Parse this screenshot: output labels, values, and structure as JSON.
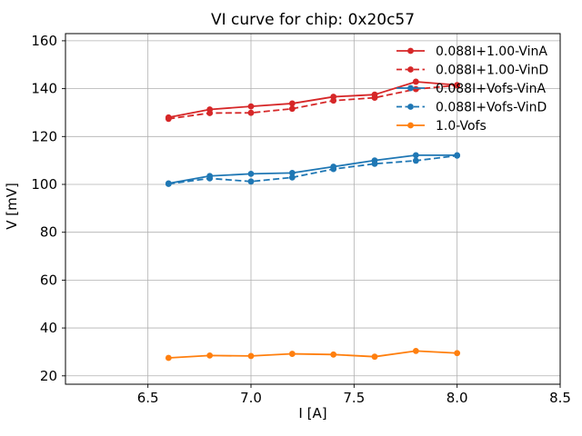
{
  "figure": {
    "background": "#ffffff"
  },
  "chart_data": {
    "type": "line",
    "title": "VI curve for chip: 0x20c57",
    "xlabel": "I [A]",
    "ylabel": "V [mV]",
    "xlim": [
      6.1,
      8.5
    ],
    "ylim": [
      16.5,
      163
    ],
    "grid": true,
    "legend_position": "upper right",
    "legend_frame": false,
    "xticks": {
      "values": [
        6.5,
        7.0,
        7.5,
        8.0,
        8.5
      ],
      "labels": [
        "6.5",
        "7.0",
        "7.5",
        "8.0",
        "8.5"
      ]
    },
    "yticks": {
      "values": [
        20,
        40,
        60,
        80,
        100,
        120,
        140,
        160
      ],
      "labels": [
        "20",
        "40",
        "60",
        "80",
        "100",
        "120",
        "140",
        "160"
      ]
    },
    "x": [
      6.6,
      6.8,
      7.0,
      7.2,
      7.4,
      7.6,
      7.8,
      8.0
    ],
    "series": [
      {
        "name": "0.088I+1.00-VinA",
        "color": "#d62728",
        "line_style": "solid",
        "marker": "circle",
        "values": [
          128.0,
          131.3,
          132.6,
          133.8,
          136.6,
          137.5,
          142.9,
          141.5
        ]
      },
      {
        "name": "0.088I+1.00-VinD",
        "color": "#d62728",
        "line_style": "dashed",
        "marker": "circle",
        "values": [
          127.4,
          129.8,
          129.9,
          131.6,
          135.0,
          136.2,
          139.8,
          141.4
        ]
      },
      {
        "name": "0.088I+Vofs-VinA",
        "color": "#1f77b4",
        "line_style": "solid",
        "marker": "circle",
        "values": [
          100.4,
          103.5,
          104.4,
          104.8,
          107.4,
          110.0,
          112.2,
          112.2
        ]
      },
      {
        "name": "0.088I+Vofs-VinD",
        "color": "#1f77b4",
        "line_style": "dashed",
        "marker": "circle",
        "values": [
          100.2,
          102.5,
          101.2,
          102.9,
          106.4,
          108.6,
          109.9,
          112.0
        ]
      },
      {
        "name": "1.0-Vofs",
        "color": "#ff7f0e",
        "line_style": "solid",
        "marker": "circle",
        "values": [
          27.5,
          28.5,
          28.3,
          29.2,
          28.9,
          28.0,
          30.4,
          29.5
        ]
      }
    ],
    "colors": {
      "grid": "#b0b0b0",
      "axis": "#000000",
      "text": "#000000",
      "background": "#ffffff"
    }
  }
}
